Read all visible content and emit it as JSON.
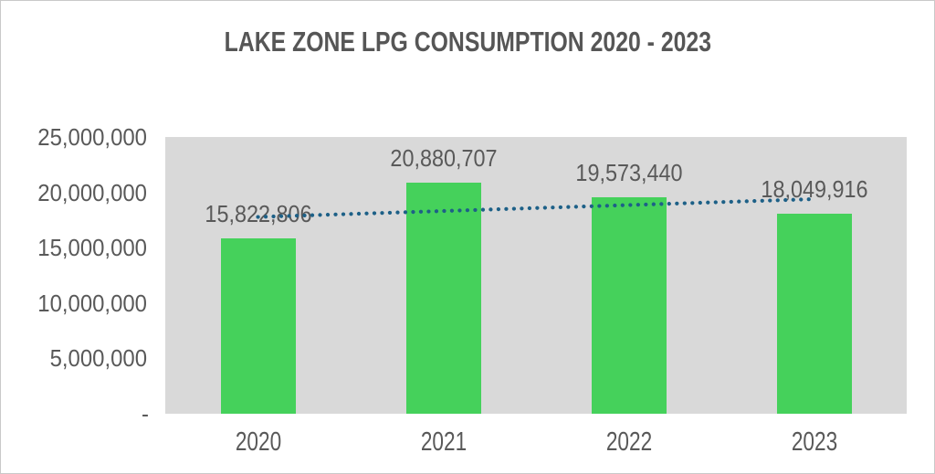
{
  "chart_data": {
    "type": "bar",
    "title": "LAKE ZONE LPG CONSUMPTION 2020 - 2023",
    "categories": [
      "2020",
      "2021",
      "2022",
      "2023"
    ],
    "values": [
      15822806,
      20880707,
      19573440,
      18049916
    ],
    "data_labels": [
      "15,822,806",
      "20,880,707",
      "19,573,440",
      "18,049,916"
    ],
    "xlabel": "",
    "ylabel": "",
    "ylim": [
      0,
      25000000
    ],
    "y_tick_values": [
      25000000,
      20000000,
      15000000,
      10000000,
      5000000,
      0
    ],
    "y_tick_labels": [
      "25,000,000",
      "20,000,000",
      "15,000,000",
      "10,000,000",
      "5,000,000",
      "-"
    ],
    "grid": false,
    "legend": "none",
    "trendline": {
      "type": "linear",
      "style": "dotted"
    },
    "colors": {
      "bar_fill": "#45d15b",
      "trendline": "#1d6087",
      "plot_background": "#d9d9d9",
      "canvas_background": "#ffffff",
      "border": "#c9c9c9",
      "title_text": "#565656",
      "axis_text": "#595959",
      "data_label_text": "#595959"
    }
  }
}
